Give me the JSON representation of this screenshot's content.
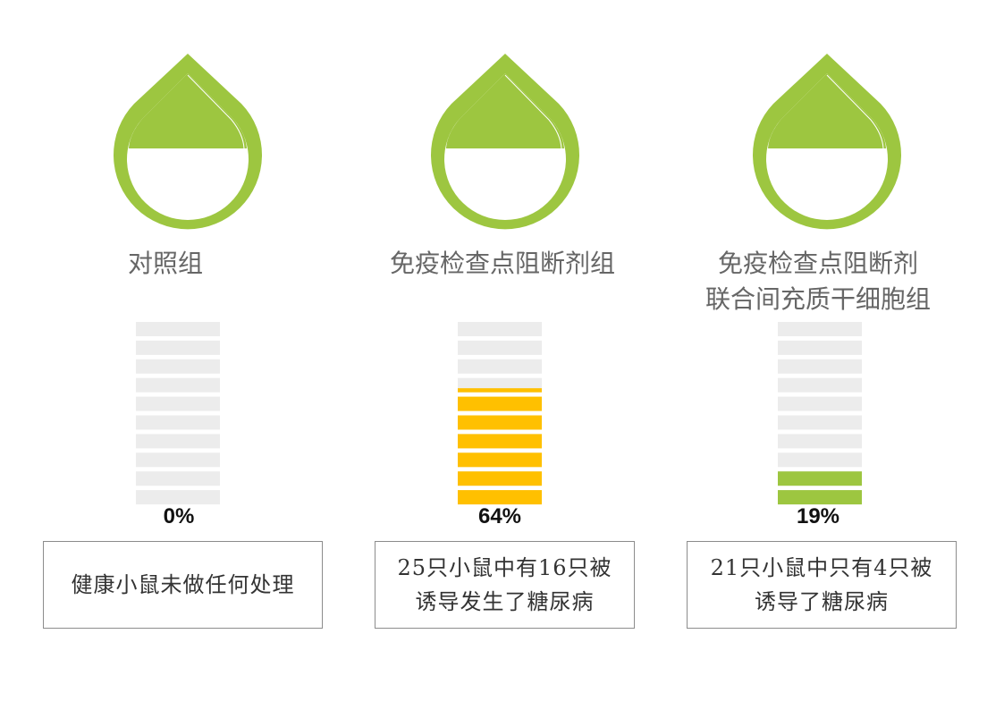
{
  "colors": {
    "drop": "#9dc640",
    "empty_bar": "#ececec",
    "bar_fills": [
      "#9dc640",
      "#ffc000",
      "#9dc640"
    ]
  },
  "chart_data": {
    "type": "bar",
    "categories": [
      "对照组",
      "免疫检查点阻断剂组",
      "免疫检查点阻断剂联合间充质干细胞组"
    ],
    "values": [
      0,
      64,
      19
    ],
    "unit": "%",
    "ylim": [
      0,
      100
    ]
  },
  "groups": [
    {
      "title_lines": [
        "对照组"
      ],
      "percent_label": "0%",
      "desc_lines": [
        "健康小鼠未做任何处理"
      ]
    },
    {
      "title_lines": [
        "免疫检查点阻断剂组"
      ],
      "percent_label": "64%",
      "desc_lines": [
        "25只小鼠中有16只被",
        "诱导发生了糖尿病"
      ]
    },
    {
      "title_lines": [
        "免疫检查点阻断剂",
        "联合间充质干细胞组"
      ],
      "percent_label": "19%",
      "desc_lines": [
        "21只小鼠中只有4只被",
        "诱导了糖尿病"
      ]
    }
  ]
}
